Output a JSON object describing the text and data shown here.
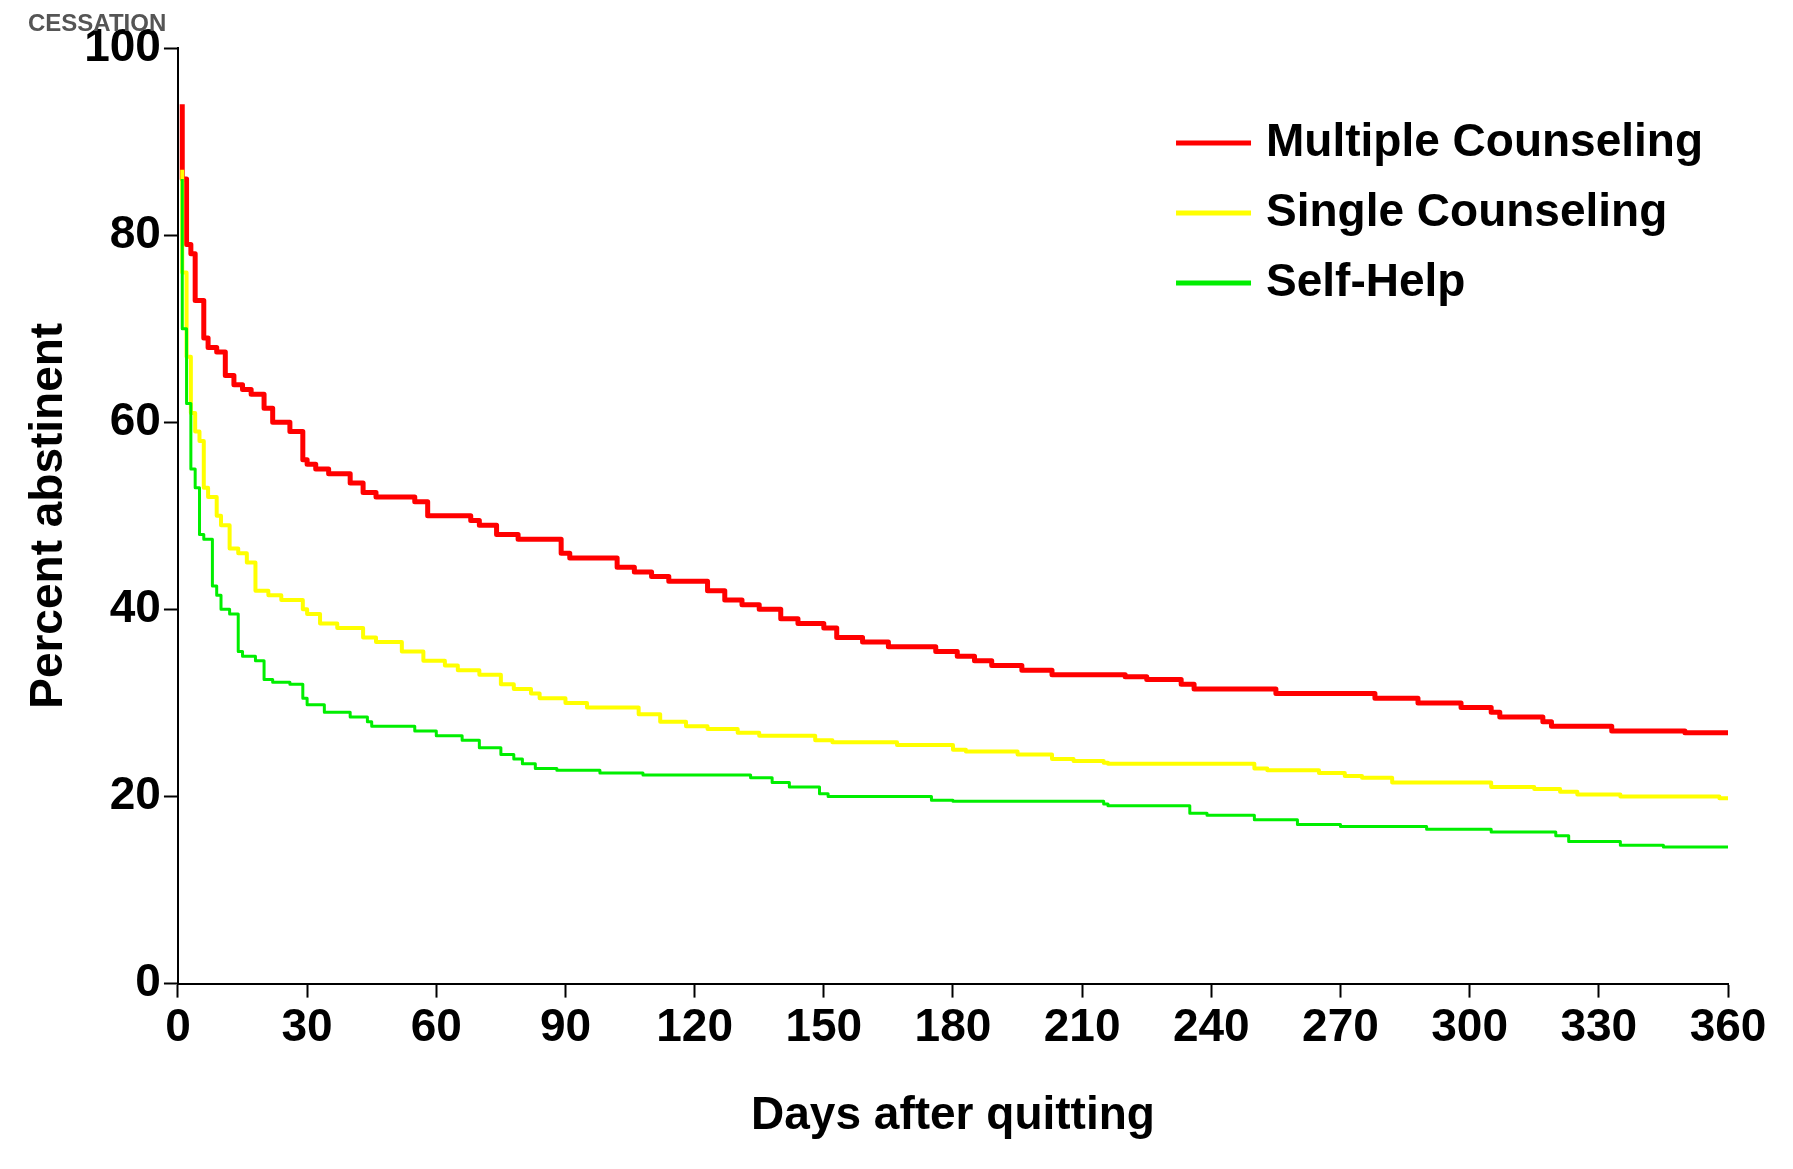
{
  "chart_data": {
    "type": "step",
    "xlabel": "Days after quitting",
    "ylabel": "Percent abstinent",
    "annotations": [
      "CESSATION"
    ],
    "xlim": [
      0,
      360
    ],
    "xticks": [
      0,
      30,
      60,
      90,
      120,
      150,
      180,
      210,
      240,
      270,
      300,
      330,
      360
    ],
    "ylim": [
      0,
      100
    ],
    "yticks": [
      0,
      20,
      40,
      60,
      80,
      100
    ],
    "grid": false,
    "legend": "top right",
    "marker": "none",
    "line_style": "solid",
    "series": [
      {
        "name": "Multiple Counseling",
        "color": "#ff0000",
        "x": [
          1,
          2,
          3,
          4,
          5,
          6,
          7,
          9,
          11,
          13,
          15,
          17,
          20,
          22,
          26,
          29,
          30,
          32,
          35,
          40,
          43,
          46,
          48,
          55,
          58,
          61,
          68,
          70,
          74,
          75,
          79,
          89,
          91,
          93,
          102,
          106,
          110,
          114,
          123,
          127,
          131,
          135,
          140,
          144,
          150,
          153,
          159,
          165,
          167,
          176,
          181,
          185,
          189,
          196,
          203,
          207,
          220,
          225,
          233,
          236,
          255,
          278,
          288,
          298,
          305,
          307,
          317,
          319,
          333,
          350,
          355,
          360
        ],
        "values": [
          94,
          86,
          79,
          78,
          73,
          73,
          69,
          68,
          67.5,
          65,
          64,
          63.5,
          63,
          61.5,
          60,
          59,
          56,
          55.5,
          55,
          54.5,
          53.5,
          52.5,
          52,
          52,
          51.5,
          50,
          50,
          49.5,
          49,
          48,
          48,
          47.5,
          46,
          45.5,
          45.5,
          44.5,
          44,
          43.5,
          43,
          42,
          41,
          40.5,
          40,
          39,
          38.5,
          38,
          37,
          36.5,
          36,
          36,
          35.5,
          35,
          34.5,
          34,
          33.5,
          33,
          33,
          32.8,
          32.5,
          32,
          31.5,
          31,
          30.5,
          30,
          29.5,
          29,
          28.5,
          28,
          27.5,
          27,
          26.8,
          26.8
        ]
      },
      {
        "name": "Single Counseling",
        "color": "#ffff00",
        "x": [
          1,
          2,
          3,
          4,
          5,
          6,
          7,
          9,
          10,
          12,
          14,
          16,
          18,
          21,
          24,
          29,
          30,
          33,
          37,
          43,
          46,
          52,
          57,
          62,
          65,
          70,
          75,
          78,
          82,
          84,
          90,
          95,
          97,
          107,
          112,
          118,
          123,
          130,
          135,
          148,
          152,
          167,
          180,
          183,
          195,
          203,
          208,
          215,
          216,
          250,
          253,
          265,
          271,
          275,
          282,
          305,
          315,
          321,
          325,
          335,
          358,
          360
        ],
        "values": [
          87,
          76,
          67,
          61,
          59,
          58,
          53,
          52,
          50,
          49,
          46.5,
          46,
          45,
          42,
          41.5,
          41,
          40,
          39.5,
          38.5,
          38,
          37,
          36.5,
          35.5,
          34.5,
          34,
          33.5,
          33,
          32,
          31.5,
          31,
          30.5,
          30,
          29.5,
          29.5,
          28.8,
          28,
          27.5,
          27.2,
          26.8,
          26.5,
          26,
          25.8,
          25.5,
          25,
          24.8,
          24.5,
          24,
          23.8,
          23.6,
          23.5,
          23,
          22.8,
          22.5,
          22.2,
          22,
          21.5,
          21,
          20.8,
          20.5,
          20.2,
          20,
          19.8
        ]
      },
      {
        "name": "Self-Help",
        "color": "#00ee00",
        "x": [
          1,
          2,
          3,
          4,
          5,
          6,
          8,
          9,
          10,
          12,
          14,
          15,
          18,
          20,
          22,
          26,
          29,
          30,
          34,
          40,
          44,
          45,
          55,
          60,
          66,
          70,
          75,
          78,
          80,
          83,
          88,
          98,
          108,
          110,
          133,
          138,
          142,
          149,
          151,
          155,
          175,
          180,
          215,
          216,
          235,
          239,
          250,
          260,
          270,
          290,
          305,
          307,
          320,
          323,
          335,
          345,
          350,
          360
        ],
        "values": [
          86,
          70,
          62,
          55,
          53,
          48,
          47.5,
          42.5,
          41.5,
          40,
          39.5,
          35.5,
          35,
          34.5,
          32.5,
          32.2,
          32,
          30.5,
          29.8,
          29,
          28.5,
          28,
          27.5,
          27,
          26.5,
          26,
          25.2,
          24.5,
          24,
          23.5,
          23,
          22.8,
          22.5,
          22.3,
          22.3,
          22,
          21.5,
          21,
          20.3,
          20,
          20,
          19.6,
          19.5,
          19.2,
          19,
          18.2,
          18,
          17.5,
          17,
          16.8,
          16.5,
          16.2,
          16.2,
          15.8,
          15.2,
          14.8,
          14.6,
          14.6
        ]
      }
    ]
  }
}
